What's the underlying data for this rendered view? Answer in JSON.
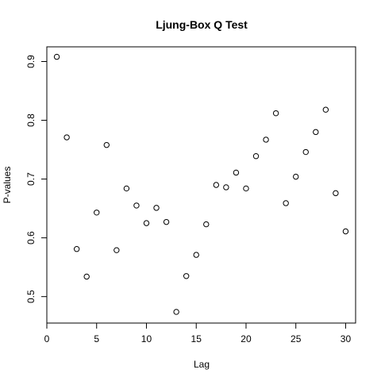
{
  "chart_data": {
    "type": "scatter",
    "title": "Ljung-Box Q Test",
    "xlabel": "Lag",
    "ylabel": "P-values",
    "xlim": [
      0,
      31
    ],
    "ylim": [
      0.455,
      0.925
    ],
    "x_ticks": [
      "0",
      "5",
      "10",
      "15",
      "20",
      "25",
      "30"
    ],
    "y_ticks": [
      "0.5",
      "0.6",
      "0.7",
      "0.8",
      "0.9"
    ],
    "grid": false,
    "legend": "none",
    "point_style": "open-circle",
    "x": [
      1,
      2,
      3,
      4,
      5,
      6,
      7,
      8,
      9,
      10,
      11,
      12,
      13,
      14,
      15,
      16,
      17,
      18,
      19,
      20,
      21,
      22,
      23,
      24,
      25,
      26,
      27,
      28,
      29,
      30
    ],
    "y": [
      0.908,
      0.771,
      0.581,
      0.534,
      0.643,
      0.758,
      0.579,
      0.684,
      0.655,
      0.625,
      0.651,
      0.627,
      0.474,
      0.535,
      0.571,
      0.623,
      0.69,
      0.686,
      0.711,
      0.684,
      0.739,
      0.767,
      0.812,
      0.659,
      0.704,
      0.746,
      0.78,
      0.818,
      0.676,
      0.611
    ]
  }
}
